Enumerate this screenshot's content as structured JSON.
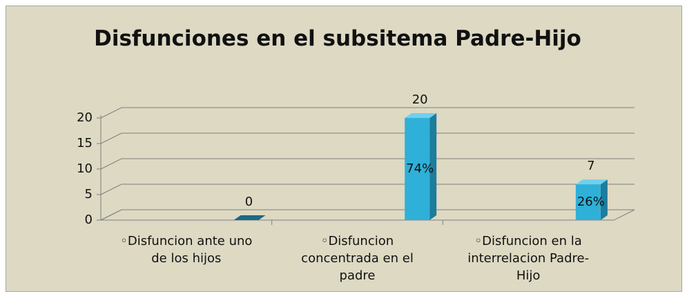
{
  "chart_data": {
    "type": "bar3d",
    "title": "Disfunciones en el subsitema Padre-Hijo",
    "categories": [
      "◦Disfuncion ante uno de  los hijos",
      "◦Disfuncion concentrada en el padre",
      "◦Disfuncion en la interrelacion Padre-Hijo"
    ],
    "values": [
      0,
      20,
      7
    ],
    "percent_labels": [
      null,
      "74%",
      "26%"
    ],
    "color": "#2fb0d8",
    "ylim": [
      0,
      20
    ],
    "yticks": [
      0,
      5,
      10,
      15,
      20
    ],
    "grid": true
  }
}
